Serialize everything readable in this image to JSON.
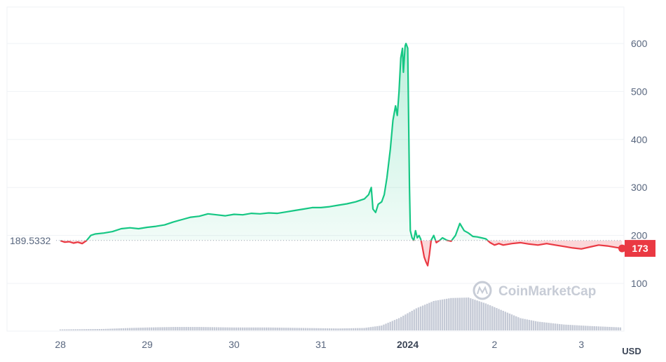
{
  "chart_data": {
    "type": "line",
    "currency_label": "USD",
    "watermark": "CoinMarketCap",
    "reference_value": 189.5332,
    "reference_label": "189.5332",
    "current_value": 173,
    "current_label": "173",
    "ylim": [
      20,
      650
    ],
    "y_ticks": [
      100,
      200,
      300,
      400,
      500,
      600
    ],
    "y_tick_labels": [
      "100",
      "200",
      "300",
      "400",
      "500",
      "600"
    ],
    "x_range": [
      -0.05,
      6.45
    ],
    "x_ticks": [
      0,
      1,
      2,
      3,
      4,
      5,
      6
    ],
    "x_tick_labels": [
      "28",
      "29",
      "30",
      "31",
      "2024",
      "2",
      "3"
    ],
    "x_bold_tick": "2024",
    "grid": true,
    "colors": {
      "up": "#16c784",
      "down": "#ea3943",
      "volume": "#c5cad6",
      "grid": "#eff2f5"
    },
    "series": [
      {
        "points": [
          [
            0.0,
            189
          ],
          [
            0.05,
            186
          ],
          [
            0.1,
            187
          ],
          [
            0.15,
            184
          ],
          [
            0.2,
            186
          ],
          [
            0.25,
            183
          ],
          [
            0.3,
            189
          ],
          [
            0.35,
            200
          ],
          [
            0.4,
            203
          ],
          [
            0.5,
            205
          ],
          [
            0.6,
            208
          ],
          [
            0.7,
            214
          ],
          [
            0.8,
            216
          ],
          [
            0.9,
            214
          ],
          [
            1.0,
            217
          ],
          [
            1.1,
            219
          ],
          [
            1.2,
            222
          ],
          [
            1.3,
            228
          ],
          [
            1.4,
            233
          ],
          [
            1.5,
            238
          ],
          [
            1.6,
            240
          ],
          [
            1.7,
            245
          ],
          [
            1.8,
            243
          ],
          [
            1.9,
            241
          ],
          [
            2.0,
            244
          ],
          [
            2.1,
            243
          ],
          [
            2.2,
            246
          ],
          [
            2.3,
            245
          ],
          [
            2.4,
            247
          ],
          [
            2.5,
            246
          ],
          [
            2.6,
            249
          ],
          [
            2.7,
            252
          ],
          [
            2.8,
            255
          ],
          [
            2.9,
            258
          ],
          [
            3.0,
            258
          ],
          [
            3.1,
            260
          ],
          [
            3.2,
            263
          ],
          [
            3.3,
            266
          ],
          [
            3.4,
            270
          ],
          [
            3.5,
            276
          ],
          [
            3.55,
            285
          ],
          [
            3.58,
            300
          ],
          [
            3.6,
            255
          ],
          [
            3.63,
            248
          ],
          [
            3.66,
            265
          ],
          [
            3.7,
            270
          ],
          [
            3.73,
            285
          ],
          [
            3.76,
            320
          ],
          [
            3.8,
            380
          ],
          [
            3.83,
            440
          ],
          [
            3.86,
            470
          ],
          [
            3.88,
            450
          ],
          [
            3.9,
            500
          ],
          [
            3.92,
            570
          ],
          [
            3.94,
            590
          ],
          [
            3.95,
            540
          ],
          [
            3.97,
            595
          ],
          [
            3.98,
            600
          ],
          [
            4.0,
            590
          ],
          [
            4.01,
            450
          ],
          [
            4.02,
            300
          ],
          [
            4.03,
            210
          ],
          [
            4.05,
            195
          ],
          [
            4.07,
            190
          ],
          [
            4.09,
            210
          ],
          [
            4.11,
            195
          ],
          [
            4.13,
            200
          ],
          [
            4.15,
            192
          ],
          [
            4.17,
            175
          ],
          [
            4.19,
            155
          ],
          [
            4.21,
            145
          ],
          [
            4.23,
            137
          ],
          [
            4.25,
            160
          ],
          [
            4.27,
            190
          ],
          [
            4.3,
            200
          ],
          [
            4.33,
            185
          ],
          [
            4.37,
            190
          ],
          [
            4.4,
            195
          ],
          [
            4.45,
            190
          ],
          [
            4.5,
            188
          ],
          [
            4.55,
            200
          ],
          [
            4.6,
            225
          ],
          [
            4.65,
            210
          ],
          [
            4.7,
            205
          ],
          [
            4.75,
            198
          ],
          [
            4.8,
            197
          ],
          [
            4.85,
            195
          ],
          [
            4.9,
            193
          ],
          [
            4.95,
            185
          ],
          [
            5.0,
            180
          ],
          [
            5.05,
            183
          ],
          [
            5.1,
            180
          ],
          [
            5.2,
            183
          ],
          [
            5.3,
            185
          ],
          [
            5.4,
            182
          ],
          [
            5.5,
            180
          ],
          [
            5.6,
            183
          ],
          [
            5.7,
            180
          ],
          [
            5.8,
            177
          ],
          [
            5.9,
            174
          ],
          [
            6.0,
            172
          ],
          [
            6.1,
            176
          ],
          [
            6.2,
            180
          ],
          [
            6.3,
            178
          ],
          [
            6.4,
            175
          ],
          [
            6.47,
            173
          ]
        ]
      }
    ],
    "volume": [
      [
        0.0,
        2
      ],
      [
        0.5,
        3
      ],
      [
        0.8,
        5
      ],
      [
        1.0,
        6
      ],
      [
        1.3,
        7
      ],
      [
        1.6,
        7
      ],
      [
        2.0,
        6
      ],
      [
        2.4,
        6
      ],
      [
        2.8,
        5
      ],
      [
        3.2,
        4
      ],
      [
        3.5,
        5
      ],
      [
        3.7,
        10
      ],
      [
        3.9,
        25
      ],
      [
        4.1,
        45
      ],
      [
        4.3,
        60
      ],
      [
        4.5,
        66
      ],
      [
        4.7,
        67
      ],
      [
        4.9,
        55
      ],
      [
        5.1,
        40
      ],
      [
        5.3,
        25
      ],
      [
        5.5,
        18
      ],
      [
        5.8,
        12
      ],
      [
        6.1,
        9
      ],
      [
        6.47,
        6
      ]
    ],
    "volume_max": 100
  }
}
